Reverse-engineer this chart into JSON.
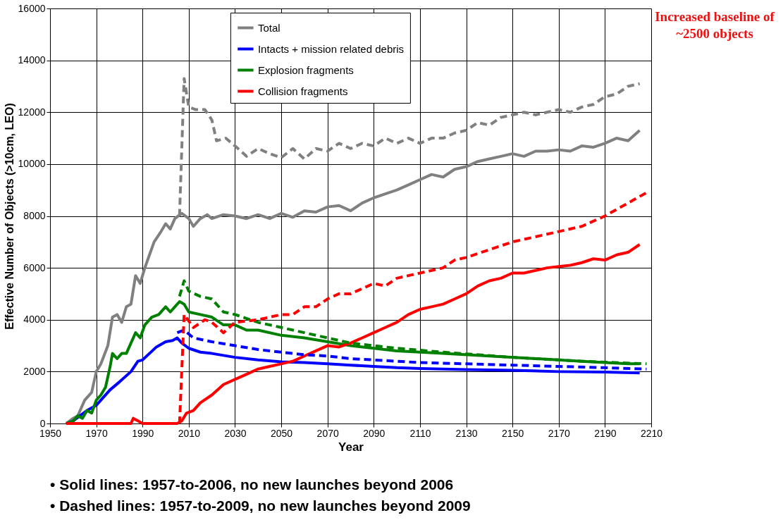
{
  "chart_data": {
    "type": "line",
    "xlabel": "Year",
    "ylabel": "Effective Number of Objects (>10cm, LEO)",
    "xlim": [
      1950,
      2210
    ],
    "xticks": [
      1950,
      1970,
      1990,
      2010,
      2030,
      2050,
      2070,
      2090,
      2110,
      2130,
      2150,
      2170,
      2190,
      2210
    ],
    "ylim": [
      0,
      16000
    ],
    "yticks": [
      0,
      2000,
      4000,
      6000,
      8000,
      10000,
      12000,
      14000,
      16000
    ],
    "grid": true,
    "legend": "top",
    "marker": "none",
    "annotations": [
      "Increased baseline of ~2500 objects",
      "• Solid lines:      1957-to-2006, no new launches beyond 2006",
      "• Dashed lines:  1957-to-2009, no new launches beyond 2009"
    ],
    "series": [
      {
        "name": "Total",
        "color": "#808080",
        "line_style": "solid",
        "x": [
          1957,
          1960,
          1962,
          1965,
          1968,
          1970,
          1972,
          1975,
          1977,
          1979,
          1981,
          1983,
          1985,
          1987,
          1989,
          1991,
          1993,
          1995,
          1998,
          2000,
          2002,
          2004,
          2007,
          2010,
          2012,
          2015,
          2018,
          2020,
          2025,
          2030,
          2035,
          2040,
          2045,
          2050,
          2055,
          2060,
          2065,
          2070,
          2075,
          2080,
          2085,
          2090,
          2095,
          2100,
          2105,
          2110,
          2115,
          2120,
          2125,
          2130,
          2135,
          2140,
          2145,
          2150,
          2155,
          2160,
          2165,
          2170,
          2175,
          2180,
          2185,
          2190,
          2195,
          2200,
          2205
        ],
        "values": [
          0,
          200,
          300,
          900,
          1200,
          2000,
          2300,
          3000,
          4100,
          4200,
          3900,
          4500,
          4600,
          5700,
          5400,
          6000,
          6500,
          7000,
          7400,
          7700,
          7500,
          7900,
          8100,
          7900,
          7600,
          7900,
          8050,
          7900,
          8050,
          8000,
          7900,
          8050,
          7900,
          8100,
          7950,
          8200,
          8150,
          8350,
          8400,
          8200,
          8500,
          8700,
          8850,
          9000,
          9200,
          9400,
          9600,
          9500,
          9800,
          9900,
          10100,
          10200,
          10300,
          10400,
          10300,
          10500,
          10500,
          10550,
          10500,
          10700,
          10650,
          10800,
          11000,
          10900,
          11300
        ]
      },
      {
        "name": "Intacts + mission related debris",
        "color": "#0000ff",
        "line_style": "solid",
        "x": [
          1957,
          1960,
          1963,
          1966,
          1970,
          1973,
          1976,
          1980,
          1985,
          1988,
          1990,
          1993,
          1996,
          2000,
          2003,
          2005,
          2007,
          2010,
          2015,
          2020,
          2030,
          2040,
          2050,
          2060,
          2070,
          2080,
          2090,
          2100,
          2110,
          2130,
          2150,
          2170,
          2190,
          2205
        ],
        "values": [
          0,
          100,
          300,
          500,
          700,
          1000,
          1300,
          1600,
          2000,
          2400,
          2450,
          2700,
          2950,
          3150,
          3200,
          3300,
          3100,
          2900,
          2750,
          2700,
          2550,
          2450,
          2380,
          2350,
          2300,
          2250,
          2200,
          2150,
          2120,
          2080,
          2050,
          2000,
          1980,
          1950
        ]
      },
      {
        "name": "Explosion fragments",
        "color": "#008000",
        "line_style": "solid",
        "x": [
          1957,
          1960,
          1962,
          1964,
          1966,
          1968,
          1970,
          1972,
          1974,
          1976,
          1977,
          1979,
          1981,
          1983,
          1985,
          1987,
          1989,
          1991,
          1994,
          1997,
          2000,
          2002,
          2004,
          2006,
          2008,
          2010,
          2015,
          2020,
          2025,
          2030,
          2035,
          2040,
          2050,
          2060,
          2070,
          2080,
          2090,
          2100,
          2120,
          2140,
          2160,
          2180,
          2200,
          2205
        ],
        "values": [
          0,
          100,
          300,
          200,
          500,
          400,
          900,
          1100,
          1400,
          2200,
          2700,
          2500,
          2700,
          2700,
          3100,
          3500,
          3300,
          3800,
          4100,
          4200,
          4500,
          4300,
          4500,
          4700,
          4600,
          4300,
          4200,
          4100,
          3800,
          3800,
          3600,
          3600,
          3400,
          3300,
          3150,
          3000,
          2900,
          2800,
          2700,
          2600,
          2500,
          2400,
          2300,
          2300
        ]
      },
      {
        "name": "Collision fragments",
        "color": "#ff0000",
        "line_style": "solid",
        "x": [
          1957,
          1985,
          1986,
          1988,
          1990,
          2005,
          2007,
          2009,
          2012,
          2015,
          2020,
          2025,
          2030,
          2035,
          2040,
          2045,
          2050,
          2055,
          2060,
          2065,
          2070,
          2075,
          2080,
          2085,
          2090,
          2095,
          2100,
          2105,
          2110,
          2115,
          2120,
          2125,
          2130,
          2135,
          2140,
          2145,
          2150,
          2155,
          2160,
          2165,
          2170,
          2175,
          2180,
          2185,
          2190,
          2195,
          2200,
          2205
        ],
        "values": [
          0,
          0,
          200,
          100,
          0,
          0,
          100,
          400,
          500,
          800,
          1100,
          1500,
          1700,
          1900,
          2100,
          2200,
          2300,
          2400,
          2600,
          2800,
          3000,
          2950,
          3100,
          3300,
          3500,
          3700,
          3900,
          4200,
          4400,
          4500,
          4600,
          4800,
          5000,
          5300,
          5500,
          5600,
          5800,
          5800,
          5900,
          6000,
          6050,
          6100,
          6200,
          6350,
          6300,
          6500,
          6600,
          6900
        ]
      },
      {
        "color": "#808080",
        "line_style": "dashed",
        "x": [
          2006,
          2008,
          2010,
          2013,
          2017,
          2020,
          2022,
          2026,
          2030,
          2035,
          2040,
          2045,
          2050,
          2055,
          2060,
          2065,
          2070,
          2075,
          2080,
          2085,
          2090,
          2095,
          2100,
          2105,
          2110,
          2115,
          2120,
          2125,
          2130,
          2135,
          2140,
          2145,
          2150,
          2155,
          2160,
          2165,
          2170,
          2175,
          2180,
          2185,
          2190,
          2195,
          2200,
          2205
        ],
        "values": [
          8000,
          13300,
          12200,
          12100,
          12100,
          11700,
          10900,
          11000,
          10700,
          10300,
          10600,
          10400,
          10250,
          10600,
          10200,
          10600,
          10500,
          10800,
          10600,
          10800,
          10700,
          11000,
          10800,
          11000,
          10800,
          11000,
          11000,
          11200,
          11300,
          11600,
          11500,
          11800,
          11900,
          12000,
          11900,
          12000,
          12100,
          12000,
          12200,
          12300,
          12600,
          12700,
          13000,
          13100
        ]
      },
      {
        "color": "#0000ff",
        "line_style": "dashed",
        "x": [
          2005,
          2008,
          2012,
          2020,
          2030,
          2040,
          2050,
          2060,
          2070,
          2080,
          2090,
          2100,
          2110,
          2130,
          2150,
          2170,
          2190,
          2208
        ],
        "values": [
          3500,
          3600,
          3300,
          3150,
          3000,
          2850,
          2750,
          2650,
          2600,
          2500,
          2450,
          2400,
          2350,
          2300,
          2250,
          2200,
          2150,
          2100
        ]
      },
      {
        "color": "#008000",
        "line_style": "dashed",
        "x": [
          2006,
          2008,
          2010,
          2015,
          2020,
          2025,
          2030,
          2040,
          2050,
          2060,
          2070,
          2080,
          2090,
          2100,
          2120,
          2150,
          2180,
          2208
        ],
        "values": [
          4900,
          5500,
          5100,
          4900,
          4800,
          4300,
          4200,
          3900,
          3700,
          3500,
          3300,
          3100,
          3000,
          2900,
          2750,
          2550,
          2400,
          2300
        ]
      },
      {
        "color": "#ff0000",
        "line_style": "dashed",
        "x": [
          2006,
          2008,
          2012,
          2017,
          2020,
          2025,
          2030,
          2040,
          2050,
          2055,
          2060,
          2065,
          2070,
          2075,
          2080,
          2090,
          2095,
          2100,
          2105,
          2110,
          2120,
          2125,
          2130,
          2140,
          2150,
          2160,
          2170,
          2180,
          2190,
          2200,
          2208
        ],
        "values": [
          0,
          4200,
          3700,
          4000,
          3900,
          3500,
          3900,
          4000,
          4200,
          4200,
          4500,
          4500,
          4800,
          5000,
          5000,
          5400,
          5300,
          5600,
          5700,
          5800,
          6000,
          6300,
          6400,
          6700,
          7000,
          7200,
          7400,
          7600,
          8000,
          8500,
          8900
        ]
      }
    ]
  }
}
